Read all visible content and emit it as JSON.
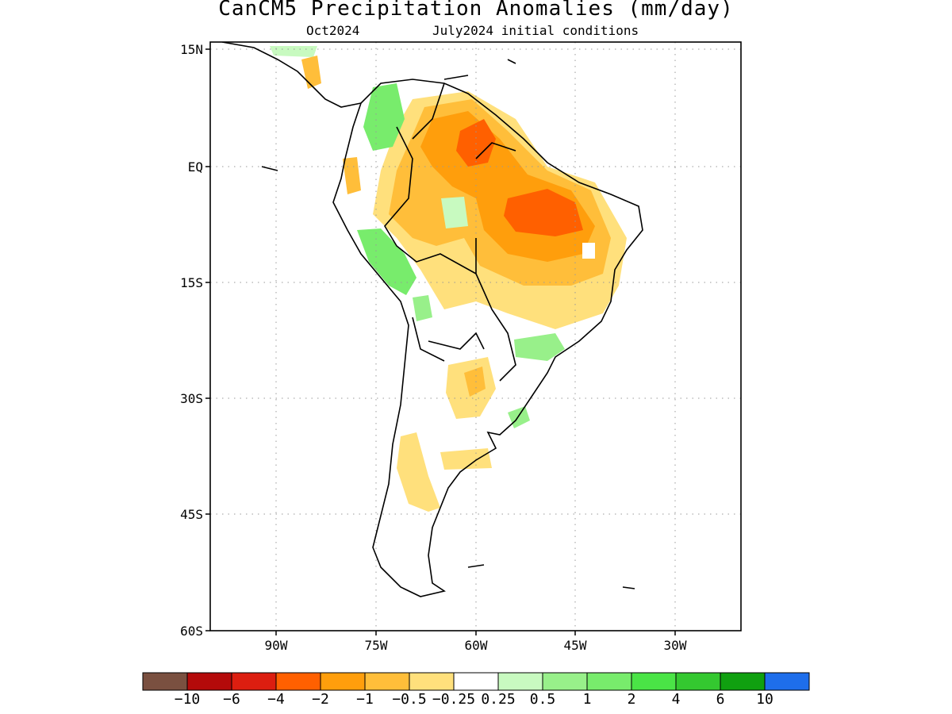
{
  "title": "CanCM5 Precipitation Anomalies (mm/day)",
  "subtitle_left": "Oct2024",
  "subtitle_right": "July2024 initial conditions",
  "axes": {
    "lat_ticks": [
      "15N",
      "EQ",
      "15S",
      "30S",
      "45S",
      "60S"
    ],
    "lon_ticks": [
      "90W",
      "75W",
      "60W",
      "45W",
      "30W"
    ],
    "grid": "dotted"
  },
  "colorbar": {
    "colors": [
      "#7a5040",
      "#b40a0a",
      "#dc1e10",
      "#ff6000",
      "#ff9e0c",
      "#ffbe3a",
      "#ffe07c",
      "#ffffff",
      "#c8fac0",
      "#98f08a",
      "#78ec6c",
      "#4ae446",
      "#34c830",
      "#10a010",
      "#1e6eeb"
    ],
    "labels": [
      "−10",
      "−6",
      "−4",
      "−2",
      "−1",
      "−0.5",
      "−0.25",
      "0.25",
      "0.5",
      "1",
      "2",
      "4",
      "6",
      "10"
    ]
  },
  "map_region": "South America"
}
